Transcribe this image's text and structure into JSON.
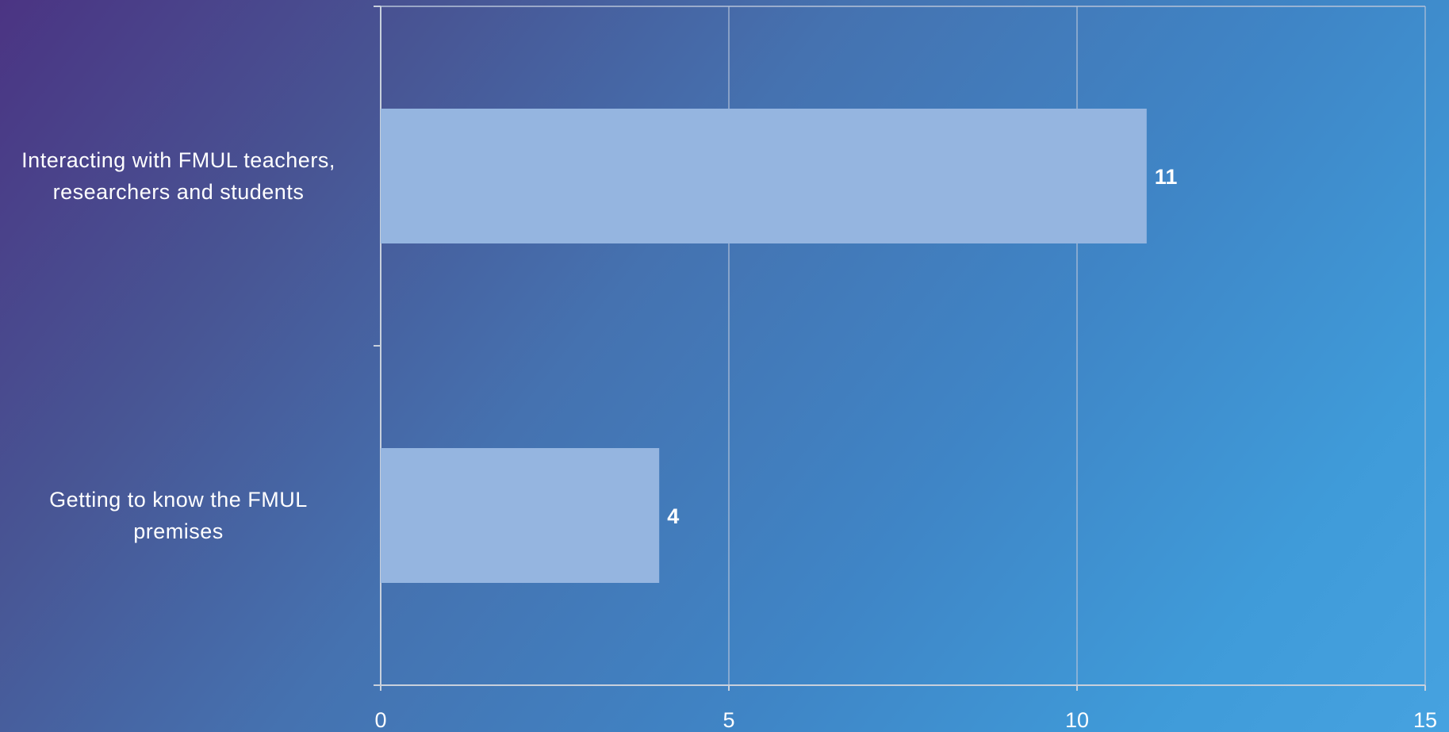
{
  "chart_data": {
    "type": "bar",
    "orientation": "horizontal",
    "categories": [
      "Interacting with FMUL teachers, researchers and students",
      "Getting to know the FMUL premises"
    ],
    "category_lines": [
      [
        "Interacting with FMUL teachers,",
        "researchers and students"
      ],
      [
        "Getting to know the FMUL",
        "premises"
      ]
    ],
    "values": [
      11,
      4
    ],
    "data_labels": [
      "11",
      "4"
    ],
    "xlim": [
      0,
      15
    ],
    "x_ticks": [
      0,
      5,
      10,
      15
    ],
    "x_tick_labels": [
      "0",
      "5",
      "10",
      "15"
    ],
    "grid": "vertical",
    "legend": "none",
    "colors": {
      "bar": "#95b5e0",
      "grid": "#b5c2d8",
      "axis": "#c8d0dc",
      "text": "#ffffff"
    }
  }
}
